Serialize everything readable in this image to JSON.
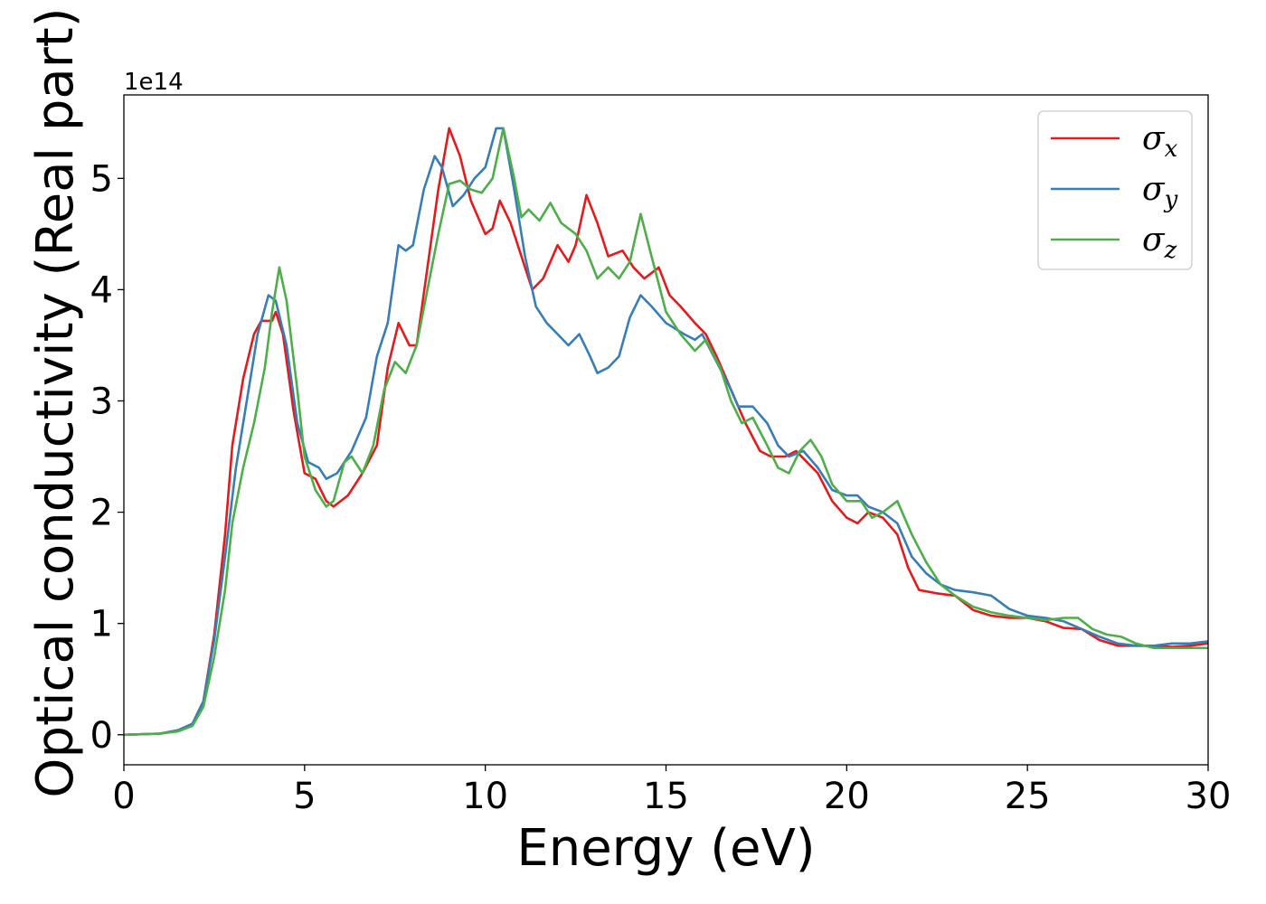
{
  "chart_data": {
    "type": "line",
    "xlabel": "Energy (eV)",
    "ylabel": "Optical conductivity (Real part)",
    "y_offset_label": "1e14",
    "xlim": [
      0,
      30
    ],
    "ylim": [
      -0.27,
      5.75
    ],
    "x_ticks": [
      0,
      5,
      10,
      15,
      20,
      25,
      30
    ],
    "y_ticks": [
      0,
      1,
      2,
      3,
      4,
      5
    ],
    "grid": false,
    "legend_position": "top-right",
    "series": [
      {
        "name": "σx",
        "legend_symbol": "σ",
        "legend_subscript": "x",
        "color": "#e41a1c",
        "points": [
          [
            0,
            0
          ],
          [
            1,
            0.01
          ],
          [
            1.5,
            0.04
          ],
          [
            1.9,
            0.1
          ],
          [
            2.2,
            0.3
          ],
          [
            2.5,
            0.9
          ],
          [
            2.8,
            1.8
          ],
          [
            3.0,
            2.6
          ],
          [
            3.3,
            3.2
          ],
          [
            3.6,
            3.6
          ],
          [
            3.8,
            3.72
          ],
          [
            4.1,
            3.72
          ],
          [
            4.2,
            3.8
          ],
          [
            4.4,
            3.6
          ],
          [
            4.7,
            2.9
          ],
          [
            5.0,
            2.35
          ],
          [
            5.3,
            2.3
          ],
          [
            5.6,
            2.1
          ],
          [
            5.8,
            2.05
          ],
          [
            6.2,
            2.15
          ],
          [
            6.6,
            2.35
          ],
          [
            7.0,
            2.6
          ],
          [
            7.3,
            3.3
          ],
          [
            7.6,
            3.7
          ],
          [
            7.9,
            3.5
          ],
          [
            8.1,
            3.5
          ],
          [
            8.4,
            4.2
          ],
          [
            8.7,
            4.9
          ],
          [
            9.0,
            5.45
          ],
          [
            9.3,
            5.2
          ],
          [
            9.6,
            4.8
          ],
          [
            10.0,
            4.5
          ],
          [
            10.2,
            4.55
          ],
          [
            10.4,
            4.8
          ],
          [
            10.7,
            4.6
          ],
          [
            11.0,
            4.3
          ],
          [
            11.3,
            4.0
          ],
          [
            11.6,
            4.1
          ],
          [
            12.0,
            4.4
          ],
          [
            12.3,
            4.25
          ],
          [
            12.5,
            4.4
          ],
          [
            12.8,
            4.85
          ],
          [
            13.1,
            4.6
          ],
          [
            13.4,
            4.3
          ],
          [
            13.8,
            4.35
          ],
          [
            14.1,
            4.2
          ],
          [
            14.4,
            4.1
          ],
          [
            14.8,
            4.2
          ],
          [
            15.1,
            3.95
          ],
          [
            15.4,
            3.85
          ],
          [
            15.8,
            3.7
          ],
          [
            16.1,
            3.6
          ],
          [
            16.4,
            3.4
          ],
          [
            16.8,
            3.1
          ],
          [
            17.2,
            2.8
          ],
          [
            17.6,
            2.55
          ],
          [
            17.9,
            2.5
          ],
          [
            18.3,
            2.5
          ],
          [
            18.6,
            2.55
          ],
          [
            18.9,
            2.45
          ],
          [
            19.2,
            2.35
          ],
          [
            19.6,
            2.1
          ],
          [
            20.0,
            1.95
          ],
          [
            20.3,
            1.9
          ],
          [
            20.6,
            2.0
          ],
          [
            21.0,
            1.95
          ],
          [
            21.4,
            1.8
          ],
          [
            21.7,
            1.5
          ],
          [
            22.0,
            1.3
          ],
          [
            22.5,
            1.27
          ],
          [
            23.0,
            1.25
          ],
          [
            23.5,
            1.12
          ],
          [
            24.0,
            1.07
          ],
          [
            24.5,
            1.05
          ],
          [
            25.0,
            1.05
          ],
          [
            25.5,
            1.02
          ],
          [
            26.0,
            0.96
          ],
          [
            26.5,
            0.95
          ],
          [
            27.0,
            0.85
          ],
          [
            27.5,
            0.8
          ],
          [
            28.0,
            0.8
          ],
          [
            28.5,
            0.8
          ],
          [
            29.0,
            0.79
          ],
          [
            29.5,
            0.8
          ],
          [
            30,
            0.82
          ]
        ]
      },
      {
        "name": "σy",
        "legend_symbol": "σ",
        "legend_subscript": "y",
        "color": "#377eb8",
        "points": [
          [
            0,
            0
          ],
          [
            1,
            0.01
          ],
          [
            1.5,
            0.04
          ],
          [
            1.9,
            0.1
          ],
          [
            2.2,
            0.3
          ],
          [
            2.5,
            0.85
          ],
          [
            2.8,
            1.6
          ],
          [
            3.1,
            2.4
          ],
          [
            3.4,
            3.0
          ],
          [
            3.7,
            3.6
          ],
          [
            4.0,
            3.95
          ],
          [
            4.2,
            3.9
          ],
          [
            4.5,
            3.5
          ],
          [
            4.8,
            2.8
          ],
          [
            5.1,
            2.45
          ],
          [
            5.4,
            2.4
          ],
          [
            5.6,
            2.3
          ],
          [
            5.9,
            2.35
          ],
          [
            6.3,
            2.55
          ],
          [
            6.7,
            2.85
          ],
          [
            7.0,
            3.4
          ],
          [
            7.3,
            3.7
          ],
          [
            7.6,
            4.4
          ],
          [
            7.8,
            4.35
          ],
          [
            8.0,
            4.4
          ],
          [
            8.3,
            4.9
          ],
          [
            8.6,
            5.2
          ],
          [
            8.8,
            5.1
          ],
          [
            9.1,
            4.75
          ],
          [
            9.4,
            4.85
          ],
          [
            9.7,
            5.0
          ],
          [
            10.0,
            5.1
          ],
          [
            10.3,
            5.45
          ],
          [
            10.5,
            5.45
          ],
          [
            10.8,
            4.9
          ],
          [
            11.1,
            4.3
          ],
          [
            11.4,
            3.85
          ],
          [
            11.7,
            3.7
          ],
          [
            12.0,
            3.6
          ],
          [
            12.3,
            3.5
          ],
          [
            12.6,
            3.6
          ],
          [
            12.9,
            3.4
          ],
          [
            13.1,
            3.25
          ],
          [
            13.4,
            3.3
          ],
          [
            13.7,
            3.4
          ],
          [
            14.0,
            3.75
          ],
          [
            14.3,
            3.95
          ],
          [
            14.6,
            3.85
          ],
          [
            15.0,
            3.7
          ],
          [
            15.5,
            3.6
          ],
          [
            15.8,
            3.55
          ],
          [
            16.0,
            3.6
          ],
          [
            16.4,
            3.35
          ],
          [
            16.8,
            3.1
          ],
          [
            17.0,
            2.95
          ],
          [
            17.4,
            2.95
          ],
          [
            17.8,
            2.8
          ],
          [
            18.1,
            2.6
          ],
          [
            18.4,
            2.5
          ],
          [
            18.8,
            2.55
          ],
          [
            19.2,
            2.4
          ],
          [
            19.6,
            2.2
          ],
          [
            20.0,
            2.15
          ],
          [
            20.3,
            2.15
          ],
          [
            20.6,
            2.05
          ],
          [
            21.0,
            2.0
          ],
          [
            21.4,
            1.9
          ],
          [
            21.8,
            1.6
          ],
          [
            22.2,
            1.45
          ],
          [
            22.6,
            1.35
          ],
          [
            23.0,
            1.3
          ],
          [
            23.5,
            1.28
          ],
          [
            24.0,
            1.25
          ],
          [
            24.5,
            1.13
          ],
          [
            25.0,
            1.07
          ],
          [
            25.5,
            1.05
          ],
          [
            26.0,
            1.02
          ],
          [
            26.5,
            0.95
          ],
          [
            27.0,
            0.88
          ],
          [
            27.5,
            0.82
          ],
          [
            28.0,
            0.8
          ],
          [
            28.5,
            0.8
          ],
          [
            29.0,
            0.82
          ],
          [
            29.5,
            0.82
          ],
          [
            30,
            0.84
          ]
        ]
      },
      {
        "name": "σz",
        "legend_symbol": "σ",
        "legend_subscript": "z",
        "color": "#4daf4a",
        "points": [
          [
            0,
            0
          ],
          [
            1,
            0.01
          ],
          [
            1.5,
            0.03
          ],
          [
            1.9,
            0.08
          ],
          [
            2.2,
            0.25
          ],
          [
            2.5,
            0.7
          ],
          [
            2.8,
            1.3
          ],
          [
            3.0,
            1.9
          ],
          [
            3.3,
            2.4
          ],
          [
            3.6,
            2.8
          ],
          [
            3.9,
            3.3
          ],
          [
            4.1,
            3.8
          ],
          [
            4.3,
            4.2
          ],
          [
            4.5,
            3.9
          ],
          [
            4.8,
            3.1
          ],
          [
            5.0,
            2.5
          ],
          [
            5.3,
            2.2
          ],
          [
            5.6,
            2.05
          ],
          [
            5.8,
            2.1
          ],
          [
            6.1,
            2.45
          ],
          [
            6.3,
            2.5
          ],
          [
            6.6,
            2.35
          ],
          [
            6.9,
            2.6
          ],
          [
            7.2,
            3.1
          ],
          [
            7.5,
            3.35
          ],
          [
            7.8,
            3.25
          ],
          [
            8.1,
            3.5
          ],
          [
            8.4,
            4.0
          ],
          [
            8.7,
            4.5
          ],
          [
            9.0,
            4.95
          ],
          [
            9.3,
            4.98
          ],
          [
            9.6,
            4.9
          ],
          [
            9.9,
            4.87
          ],
          [
            10.2,
            5.0
          ],
          [
            10.5,
            5.45
          ],
          [
            10.8,
            5.0
          ],
          [
            11.0,
            4.65
          ],
          [
            11.2,
            4.72
          ],
          [
            11.5,
            4.62
          ],
          [
            11.8,
            4.78
          ],
          [
            12.1,
            4.6
          ],
          [
            12.5,
            4.5
          ],
          [
            12.8,
            4.35
          ],
          [
            13.1,
            4.1
          ],
          [
            13.4,
            4.2
          ],
          [
            13.7,
            4.1
          ],
          [
            14.0,
            4.25
          ],
          [
            14.3,
            4.68
          ],
          [
            14.6,
            4.3
          ],
          [
            15.0,
            3.8
          ],
          [
            15.4,
            3.6
          ],
          [
            15.8,
            3.45
          ],
          [
            16.1,
            3.55
          ],
          [
            16.5,
            3.3
          ],
          [
            16.8,
            3.0
          ],
          [
            17.1,
            2.8
          ],
          [
            17.4,
            2.85
          ],
          [
            17.8,
            2.6
          ],
          [
            18.1,
            2.4
          ],
          [
            18.4,
            2.35
          ],
          [
            18.7,
            2.55
          ],
          [
            19.0,
            2.65
          ],
          [
            19.3,
            2.5
          ],
          [
            19.6,
            2.25
          ],
          [
            20.0,
            2.1
          ],
          [
            20.4,
            2.1
          ],
          [
            20.7,
            1.95
          ],
          [
            21.0,
            2.0
          ],
          [
            21.4,
            2.1
          ],
          [
            21.8,
            1.8
          ],
          [
            22.2,
            1.55
          ],
          [
            22.6,
            1.35
          ],
          [
            23.0,
            1.25
          ],
          [
            23.5,
            1.15
          ],
          [
            24.0,
            1.1
          ],
          [
            24.5,
            1.07
          ],
          [
            25.0,
            1.05
          ],
          [
            25.5,
            1.03
          ],
          [
            26.0,
            1.05
          ],
          [
            26.4,
            1.05
          ],
          [
            26.8,
            0.95
          ],
          [
            27.2,
            0.9
          ],
          [
            27.6,
            0.88
          ],
          [
            28.0,
            0.82
          ],
          [
            28.5,
            0.78
          ],
          [
            29.0,
            0.78
          ],
          [
            29.5,
            0.78
          ],
          [
            30,
            0.78
          ]
        ]
      }
    ]
  }
}
